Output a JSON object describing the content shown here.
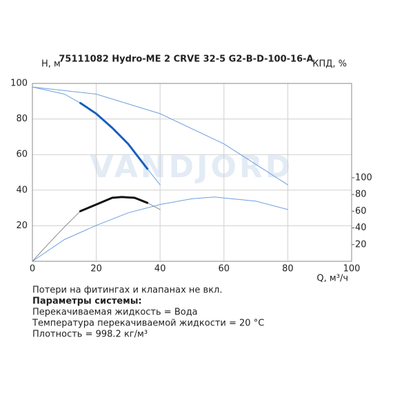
{
  "chart_data": {
    "type": "line",
    "title": "75111082 Hydro-ME 2 CRVE 32-5 G2-B-D-100-16-A",
    "y_label": "H, м",
    "y2_label": "КПД, %",
    "x_label": "Q, м³/ч",
    "watermark": "VANDJORD",
    "xlim": [
      0,
      100
    ],
    "xticks": [
      0,
      20,
      40,
      60,
      80,
      100
    ],
    "ylim": [
      0,
      100
    ],
    "yticks": [
      20,
      40,
      60,
      80,
      100
    ],
    "y2lim": [
      0,
      213
    ],
    "y2ticks": [
      20,
      40,
      60,
      80,
      100
    ],
    "grid": true,
    "series": [
      {
        "color": "#6d9ee0",
        "line_width": 1,
        "axis": "y",
        "x": [
          0,
          20,
          40,
          60,
          80
        ],
        "values": [
          98,
          94,
          83,
          66,
          43
        ]
      },
      {
        "color": "#6d9ee0",
        "line_width": 1,
        "axis": "y",
        "x": [
          0,
          10,
          15,
          20,
          25,
          30,
          36,
          40
        ],
        "values": [
          98,
          94,
          89,
          83,
          75,
          66,
          52,
          43
        ]
      },
      {
        "color": "#1560bd",
        "line_width": 3,
        "axis": "y",
        "x": [
          15,
          20,
          25,
          30,
          36
        ],
        "values": [
          89,
          83,
          75,
          66,
          52
        ]
      },
      {
        "color": "#6d9ee0",
        "line_width": 1,
        "axis": "y2",
        "x": [
          0,
          10,
          20,
          30,
          40,
          50,
          57,
          70,
          80
        ],
        "values": [
          0,
          26,
          43,
          58,
          68,
          75,
          77,
          72,
          62
        ]
      },
      {
        "color": "#888888",
        "line_width": 1,
        "axis": "y2",
        "x": [
          0,
          5,
          10,
          15,
          20,
          25,
          28,
          32,
          36,
          40
        ],
        "values": [
          0,
          21,
          41,
          60,
          68,
          76,
          77,
          76,
          70,
          62
        ]
      },
      {
        "color": "#111111",
        "line_width": 3,
        "axis": "y2",
        "x": [
          15,
          20,
          25,
          28,
          32,
          36
        ],
        "values": [
          60,
          68,
          76,
          77,
          76,
          70
        ]
      }
    ],
    "notes": [
      "Потери на фитингах и клапанах не вкл.",
      "Параметры системы:",
      "Перекачиваемая жидкость = Вода",
      "Температура перекачиваемой жидкости = 20 °C",
      "Плотность = 998.2 кг/м³"
    ]
  }
}
